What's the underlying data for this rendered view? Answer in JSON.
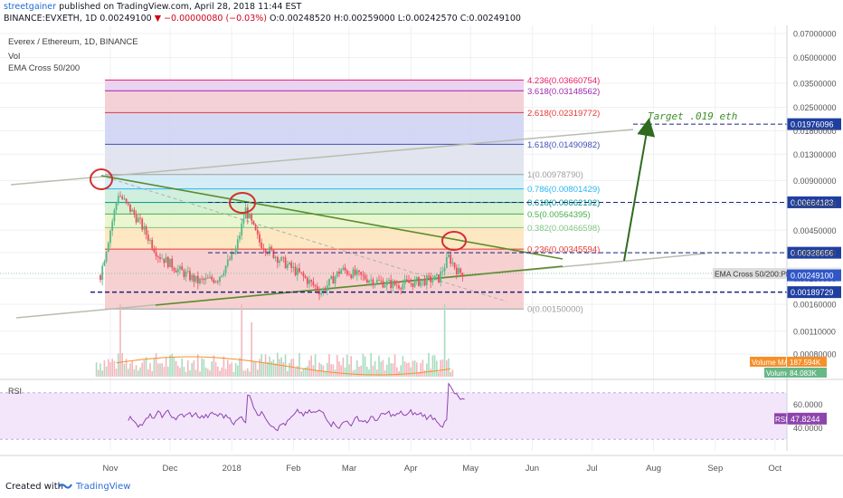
{
  "header": {
    "user": "streetgainer",
    "published_text": "published on TradingView.com, April 28, 2018 11:44 EST",
    "symbol_line": "BINANCE:EVXETH, 1D",
    "last_price": "0.00249100",
    "change": "▼ −0.00000080 (−0.03%)",
    "ohlc": "O:0.00248520 H:0.00259000 L:0.00242570 C:0.00249100"
  },
  "legend": {
    "main": "Everex / Ethereum, 1D, BINANCE",
    "vol": "Vol",
    "ema": "EMA Cross 50/200"
  },
  "chart_data": {
    "type": "candlestick",
    "title": "Everex / Ethereum, 1D, BINANCE",
    "x_axis": {
      "labels": [
        "Nov",
        "Dec",
        "2018",
        "Feb",
        "Mar",
        "Apr",
        "May",
        "Jun",
        "Jul",
        "Aug",
        "Sep",
        "Oct"
      ]
    },
    "y_axis": {
      "scale": "log",
      "ticks": [
        "0.07000000",
        "0.05000000",
        "0.03500000",
        "0.02500000",
        "0.01800000",
        "0.01300000",
        "0.00900000",
        "0.00650000",
        "0.00450000",
        "0.00330000",
        "0.00230000",
        "0.00160000",
        "0.00110000",
        "0.00080000"
      ],
      "ylim": [
        0.0006,
        0.07
      ]
    },
    "fibonacci": [
      {
        "level": "0",
        "price": 0.0015,
        "label": "0(0.00150000)",
        "color": "#9e9e9e"
      },
      {
        "level": "0.236",
        "price": 0.00345594,
        "label": "0.236(0.00345594)",
        "color": "#e53935"
      },
      {
        "level": "0.382",
        "price": 0.00466598,
        "label": "0.382(0.00466598)",
        "color": "#81c784"
      },
      {
        "level": "0.5",
        "price": 0.00564395,
        "label": "0.5(0.00564395)",
        "color": "#4caf50"
      },
      {
        "level": "0.618",
        "price": 0.00662192,
        "label": "0.618(0.00662192)",
        "color": "#009688"
      },
      {
        "level": "0.786",
        "price": 0.00801429,
        "label": "0.786(0.00801429)",
        "color": "#29b6f6"
      },
      {
        "level": "1",
        "price": 0.0097879,
        "label": "1(0.00978790)",
        "color": "#9e9e9e"
      },
      {
        "level": "1.618",
        "price": 0.01490982,
        "label": "1.618(0.01490982)",
        "color": "#3f51b5"
      },
      {
        "level": "2.618",
        "price": 0.02319772,
        "label": "2.618(0.02319772)",
        "color": "#e53935"
      },
      {
        "level": "3.618",
        "price": 0.03148562,
        "label": "3.618(0.03148562)",
        "color": "#9c27b0"
      },
      {
        "level": "4.236",
        "price": 0.03660754,
        "label": "4.236(0.03660754)",
        "color": "#e91e63"
      }
    ],
    "price_lines": [
      {
        "price": 0.01976096,
        "label": "0.01976096",
        "color": "#1a237e"
      },
      {
        "price": 0.00664183,
        "label": "0.00664183",
        "color": "#1a237e"
      },
      {
        "price": 0.00328656,
        "label": "0.00328656",
        "color": "#1a237e"
      },
      {
        "price": 0.00189729,
        "label": "0.00189729",
        "color": "#1a237e"
      }
    ],
    "price_tags": [
      {
        "label": "0.00255014",
        "name": "EMA Cross 50/200:Plot",
        "color": "#dddddd"
      },
      {
        "label": "0.00249100",
        "color": "#2f57c8"
      },
      {
        "label": "187.594K",
        "name": "Volume MA",
        "color": "#f5902a"
      },
      {
        "label": "84.083K",
        "name": "Volume",
        "color": "#67b887"
      }
    ],
    "annotation": "Target .019 eth",
    "rsi": {
      "label": "RSI",
      "value": "47.8244",
      "ticks": [
        "60.0000",
        "40.0000"
      ],
      "band": [
        30,
        70
      ]
    },
    "series": [
      {
        "name": "EVXETH daily close",
        "x": [
          "2017-10-27",
          "2017-11-05",
          "2017-11-15",
          "2017-11-25",
          "2017-12-05",
          "2017-12-15",
          "2017-12-25",
          "2018-01-03",
          "2018-01-08",
          "2018-01-15",
          "2018-01-25",
          "2018-02-05",
          "2018-02-15",
          "2018-02-25",
          "2018-03-05",
          "2018-03-15",
          "2018-03-25",
          "2018-04-05",
          "2018-04-15",
          "2018-04-20",
          "2018-04-25",
          "2018-04-28"
        ],
        "values": [
          0.0024,
          0.0075,
          0.0052,
          0.0032,
          0.0026,
          0.0022,
          0.0023,
          0.0034,
          0.006,
          0.0038,
          0.003,
          0.0024,
          0.0019,
          0.0026,
          0.0024,
          0.0022,
          0.0021,
          0.0022,
          0.0023,
          0.0031,
          0.0025,
          0.00249
        ]
      }
    ]
  },
  "footer": {
    "created": "Created with",
    "brand": "TradingView"
  },
  "colors": {
    "up": "#53b987",
    "down": "#eb4d5c",
    "trend": "#5b8c2a",
    "arrow": "#2e6b1e",
    "circle": "#d32f2f",
    "rsi": "#8e44ad"
  }
}
